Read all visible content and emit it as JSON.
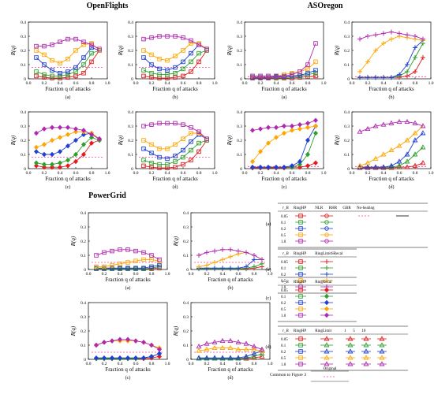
{
  "groups": [
    {
      "title": "OpenFlights"
    },
    {
      "title": "ASOregon"
    },
    {
      "title": "PowerGrid"
    }
  ],
  "axes": {
    "xlabel": "Fraction q of attacks",
    "ylabel": "R(q)",
    "xticks": [
      "0.0",
      "0.2",
      "0.4",
      "0.6",
      "0.8",
      "1.0"
    ]
  },
  "subplot_labels": [
    "(a)",
    "(b)",
    "(c)",
    "(d)"
  ],
  "legend": {
    "rows": [
      {
        "tag": "(a)",
        "headers": [
          "r_B",
          "RingHP",
          "NLR",
          "RHR",
          "GBR",
          "No-healing"
        ],
        "rb": [
          "0.05",
          "0.1",
          "0.2",
          "0.5",
          "1.0"
        ]
      },
      {
        "tag": "(b)",
        "headers": [
          "r_B",
          "RingHP",
          "RingLimitSRecal"
        ],
        "rb": [
          "0.05",
          "0.1",
          "0.2",
          "0.5",
          "1.0"
        ]
      },
      {
        "tag": "(c)",
        "headers": [
          "r_B",
          "RingHP",
          "RingRecal"
        ],
        "rb": [
          "0.05",
          "0.1",
          "0.2",
          "0.5",
          "1.0"
        ]
      },
      {
        "tag": "(d)",
        "headers": [
          "r_B",
          "RingHP",
          "RingLimit",
          "1",
          "5",
          "10"
        ],
        "rb": [
          "0.05",
          "0.1",
          "0.2",
          "0.5",
          "1.0"
        ]
      }
    ],
    "common_label": "Common to Figure 3",
    "original_label": "Original",
    "colors": [
      "#e41a1c",
      "#2ca02c",
      "#1f3fd6",
      "#ffa500",
      "#b028b0"
    ]
  },
  "chart_data": [
    {
      "type": "line",
      "panel": "OpenFlights (a)",
      "ylim": [
        0,
        0.4
      ],
      "yticks": [
        0,
        0.1,
        0.2,
        0.3,
        0.4
      ],
      "original": 0.08,
      "x": [
        0.1,
        0.2,
        0.3,
        0.4,
        0.5,
        0.6,
        0.7,
        0.8,
        0.9
      ],
      "series": [
        {
          "values": [
            0.02,
            0.01,
            0.005,
            0.005,
            0.01,
            0.02,
            0.04,
            0.12,
            0.2
          ]
        },
        {
          "values": [
            0.05,
            0.03,
            0.02,
            0.02,
            0.03,
            0.05,
            0.1,
            0.18,
            0.2
          ]
        },
        {
          "values": [
            0.15,
            0.1,
            0.06,
            0.04,
            0.05,
            0.08,
            0.15,
            0.22,
            0.2
          ]
        },
        {
          "values": [
            0.2,
            0.17,
            0.13,
            0.11,
            0.14,
            0.2,
            0.24,
            0.25,
            0.2
          ]
        },
        {
          "values": [
            0.23,
            0.23,
            0.24,
            0.26,
            0.28,
            0.28,
            0.26,
            0.24,
            0.21
          ]
        }
      ]
    },
    {
      "type": "line",
      "panel": "OpenFlights (b)",
      "ylim": [
        0,
        0.4
      ],
      "yticks": [
        0,
        0.1,
        0.2,
        0.3,
        0.4
      ],
      "original": 0.08,
      "x": [
        0.1,
        0.2,
        0.3,
        0.4,
        0.5,
        0.6,
        0.7,
        0.8,
        0.9
      ],
      "series": [
        {
          "values": [
            0.02,
            0.01,
            0.005,
            0.005,
            0.01,
            0.02,
            0.05,
            0.12,
            0.2
          ]
        },
        {
          "values": [
            0.06,
            0.04,
            0.03,
            0.03,
            0.04,
            0.07,
            0.12,
            0.18,
            0.2
          ]
        },
        {
          "values": [
            0.15,
            0.1,
            0.07,
            0.06,
            0.08,
            0.12,
            0.18,
            0.24,
            0.21
          ]
        },
        {
          "values": [
            0.2,
            0.17,
            0.14,
            0.13,
            0.16,
            0.2,
            0.25,
            0.25,
            0.21
          ]
        },
        {
          "values": [
            0.28,
            0.29,
            0.3,
            0.3,
            0.3,
            0.29,
            0.27,
            0.24,
            0.21
          ]
        }
      ]
    },
    {
      "type": "line",
      "panel": "ASOregon (a)",
      "ylim": [
        0,
        0.4
      ],
      "yticks": [
        0,
        0.1,
        0.2,
        0.3,
        0.4
      ],
      "original": 0.015,
      "x": [
        0.1,
        0.2,
        0.3,
        0.4,
        0.5,
        0.6,
        0.7,
        0.8,
        0.9
      ],
      "series": [
        {
          "values": [
            0.005,
            0.005,
            0.005,
            0.005,
            0.005,
            0.005,
            0.01,
            0.015,
            0.02
          ]
        },
        {
          "values": [
            0.01,
            0.01,
            0.01,
            0.01,
            0.01,
            0.015,
            0.02,
            0.03,
            0.04
          ]
        },
        {
          "values": [
            0.01,
            0.01,
            0.01,
            0.015,
            0.015,
            0.02,
            0.025,
            0.04,
            0.06
          ]
        },
        {
          "values": [
            0.02,
            0.02,
            0.02,
            0.02,
            0.03,
            0.04,
            0.05,
            0.07,
            0.12
          ]
        },
        {
          "values": [
            0.02,
            0.02,
            0.02,
            0.02,
            0.02,
            0.03,
            0.05,
            0.1,
            0.25
          ]
        }
      ]
    },
    {
      "type": "line",
      "panel": "ASOregon (b)",
      "ylim": [
        0,
        0.4
      ],
      "yticks": [
        0,
        0.1,
        0.2,
        0.3,
        0.4
      ],
      "original": 0.015,
      "x": [
        0.1,
        0.2,
        0.3,
        0.4,
        0.5,
        0.6,
        0.7,
        0.8,
        0.9
      ],
      "series": [
        {
          "values": [
            0.01,
            0.01,
            0.01,
            0.01,
            0.01,
            0.01,
            0.02,
            0.05,
            0.15
          ]
        },
        {
          "values": [
            0.01,
            0.01,
            0.01,
            0.01,
            0.01,
            0.02,
            0.05,
            0.15,
            0.25
          ]
        },
        {
          "values": [
            0.01,
            0.01,
            0.01,
            0.01,
            0.01,
            0.03,
            0.1,
            0.22,
            0.27
          ]
        },
        {
          "values": [
            0.05,
            0.12,
            0.2,
            0.25,
            0.28,
            0.3,
            0.29,
            0.28,
            0.27
          ]
        },
        {
          "values": [
            0.28,
            0.3,
            0.31,
            0.32,
            0.33,
            0.32,
            0.31,
            0.3,
            0.28
          ]
        }
      ]
    },
    {
      "type": "line",
      "panel": "OpenFlights (c)",
      "ylim": [
        0,
        0.4
      ],
      "yticks": [
        0,
        0.1,
        0.2,
        0.3,
        0.4
      ],
      "original": 0.08,
      "x": [
        0.1,
        0.2,
        0.3,
        0.4,
        0.5,
        0.6,
        0.7,
        0.8,
        0.9
      ],
      "series": [
        {
          "values": [
            0.02,
            0.01,
            0.01,
            0.01,
            0.02,
            0.05,
            0.1,
            0.18,
            0.2
          ]
        },
        {
          "values": [
            0.04,
            0.03,
            0.03,
            0.04,
            0.06,
            0.1,
            0.17,
            0.22,
            0.2
          ]
        },
        {
          "values": [
            0.12,
            0.1,
            0.1,
            0.12,
            0.16,
            0.2,
            0.24,
            0.25,
            0.21
          ]
        },
        {
          "values": [
            0.15,
            0.17,
            0.2,
            0.22,
            0.24,
            0.26,
            0.26,
            0.25,
            0.21
          ]
        },
        {
          "values": [
            0.25,
            0.28,
            0.29,
            0.29,
            0.29,
            0.28,
            0.27,
            0.24,
            0.21
          ]
        }
      ]
    },
    {
      "type": "line",
      "panel": "OpenFlights (d)",
      "ylim": [
        0,
        0.4
      ],
      "yticks": [
        0,
        0.1,
        0.2,
        0.3,
        0.4
      ],
      "original": 0.08,
      "x": [
        0.1,
        0.2,
        0.3,
        0.4,
        0.5,
        0.6,
        0.7,
        0.8,
        0.9
      ],
      "series": [
        {
          "values": [
            0.02,
            0.01,
            0.005,
            0.005,
            0.01,
            0.03,
            0.06,
            0.12,
            0.2
          ]
        },
        {
          "values": [
            0.06,
            0.04,
            0.03,
            0.03,
            0.05,
            0.08,
            0.13,
            0.18,
            0.2
          ]
        },
        {
          "values": [
            0.14,
            0.11,
            0.08,
            0.07,
            0.09,
            0.13,
            0.19,
            0.24,
            0.21
          ]
        },
        {
          "values": [
            0.2,
            0.17,
            0.14,
            0.14,
            0.17,
            0.21,
            0.25,
            0.25,
            0.21
          ]
        },
        {
          "values": [
            0.3,
            0.31,
            0.32,
            0.32,
            0.32,
            0.31,
            0.29,
            0.26,
            0.21
          ]
        }
      ]
    },
    {
      "type": "line",
      "panel": "ASOregon (c)",
      "ylim": [
        0,
        0.4
      ],
      "yticks": [
        0,
        0.1,
        0.2,
        0.3,
        0.4
      ],
      "original": 0.015,
      "x": [
        0.1,
        0.2,
        0.3,
        0.4,
        0.5,
        0.6,
        0.7,
        0.8,
        0.9
      ],
      "series": [
        {
          "values": [
            0.005,
            0.005,
            0.005,
            0.005,
            0.005,
            0.01,
            0.01,
            0.02,
            0.04
          ]
        },
        {
          "values": [
            0.01,
            0.01,
            0.01,
            0.01,
            0.01,
            0.01,
            0.03,
            0.1,
            0.25
          ]
        },
        {
          "values": [
            0.01,
            0.01,
            0.01,
            0.01,
            0.01,
            0.02,
            0.05,
            0.2,
            0.3
          ]
        },
        {
          "values": [
            0.05,
            0.12,
            0.18,
            0.22,
            0.25,
            0.27,
            0.28,
            0.29,
            0.3
          ]
        },
        {
          "values": [
            0.27,
            0.28,
            0.29,
            0.29,
            0.3,
            0.3,
            0.31,
            0.32,
            0.34
          ]
        }
      ]
    },
    {
      "type": "line",
      "panel": "ASOregon (d)",
      "ylim": [
        0,
        0.4
      ],
      "yticks": [
        0,
        0.1,
        0.2,
        0.3,
        0.4
      ],
      "original": 0.015,
      "x": [
        0.1,
        0.2,
        0.3,
        0.4,
        0.5,
        0.6,
        0.7,
        0.8,
        0.9
      ],
      "series": [
        {
          "values": [
            0.005,
            0.005,
            0.005,
            0.005,
            0.005,
            0.01,
            0.01,
            0.02,
            0.04
          ]
        },
        {
          "values": [
            0.01,
            0.01,
            0.01,
            0.01,
            0.01,
            0.02,
            0.05,
            0.1,
            0.15
          ]
        },
        {
          "values": [
            0.01,
            0.01,
            0.01,
            0.01,
            0.02,
            0.05,
            0.1,
            0.2,
            0.25
          ]
        },
        {
          "values": [
            0.02,
            0.04,
            0.07,
            0.1,
            0.13,
            0.16,
            0.2,
            0.25,
            0.3
          ]
        },
        {
          "values": [
            0.26,
            0.28,
            0.3,
            0.31,
            0.32,
            0.33,
            0.33,
            0.32,
            0.3
          ]
        }
      ]
    },
    {
      "type": "line",
      "panel": "PowerGrid (a)",
      "ylim": [
        0,
        0.4
      ],
      "yticks": [
        0,
        0.1,
        0.2,
        0.3,
        0.4
      ],
      "original": 0.05,
      "x": [
        0.1,
        0.2,
        0.3,
        0.4,
        0.5,
        0.6,
        0.7,
        0.8,
        0.9
      ],
      "series": [
        {
          "values": [
            0.005,
            0.005,
            0.005,
            0.005,
            0.005,
            0.005,
            0.005,
            0.005,
            0.01
          ]
        },
        {
          "values": [
            0.005,
            0.005,
            0.005,
            0.005,
            0.005,
            0.005,
            0.005,
            0.01,
            0.02
          ]
        },
        {
          "values": [
            0.01,
            0.01,
            0.01,
            0.01,
            0.01,
            0.01,
            0.01,
            0.02,
            0.03
          ]
        },
        {
          "values": [
            0.02,
            0.02,
            0.03,
            0.04,
            0.05,
            0.06,
            0.07,
            0.07,
            0.06
          ]
        },
        {
          "values": [
            0.1,
            0.12,
            0.13,
            0.14,
            0.14,
            0.13,
            0.12,
            0.1,
            0.07
          ]
        }
      ]
    },
    {
      "type": "line",
      "panel": "PowerGrid (b)",
      "ylim": [
        0,
        0.4
      ],
      "yticks": [
        0,
        0.1,
        0.2,
        0.3,
        0.4
      ],
      "original": 0.05,
      "x": [
        0.1,
        0.2,
        0.3,
        0.4,
        0.5,
        0.6,
        0.7,
        0.8,
        0.9
      ],
      "series": [
        {
          "values": [
            0.005,
            0.005,
            0.005,
            0.005,
            0.005,
            0.005,
            0.005,
            0.01,
            0.02
          ]
        },
        {
          "values": [
            0.005,
            0.005,
            0.005,
            0.005,
            0.005,
            0.005,
            0.01,
            0.02,
            0.04
          ]
        },
        {
          "values": [
            0.01,
            0.01,
            0.01,
            0.01,
            0.01,
            0.01,
            0.02,
            0.07,
            0.07
          ]
        },
        {
          "values": [
            0.02,
            0.03,
            0.05,
            0.07,
            0.09,
            0.11,
            0.12,
            0.1,
            0.07
          ]
        },
        {
          "values": [
            0.1,
            0.12,
            0.13,
            0.14,
            0.14,
            0.13,
            0.12,
            0.1,
            0.07
          ]
        }
      ]
    },
    {
      "type": "line",
      "panel": "PowerGrid (c)",
      "ylim": [
        0,
        0.4
      ],
      "yticks": [
        0,
        0.1,
        0.2,
        0.3,
        0.4
      ],
      "original": 0.05,
      "x": [
        0.1,
        0.2,
        0.3,
        0.4,
        0.5,
        0.6,
        0.7,
        0.8,
        0.9
      ],
      "series": [
        {
          "values": [
            0.005,
            0.005,
            0.005,
            0.005,
            0.005,
            0.005,
            0.005,
            0.01,
            0.02
          ]
        },
        {
          "values": [
            0.005,
            0.005,
            0.005,
            0.005,
            0.005,
            0.005,
            0.01,
            0.02,
            0.04
          ]
        },
        {
          "values": [
            0.01,
            0.01,
            0.01,
            0.01,
            0.01,
            0.01,
            0.01,
            0.02,
            0.04
          ]
        },
        {
          "values": [
            0.1,
            0.12,
            0.13,
            0.13,
            0.13,
            0.13,
            0.12,
            0.1,
            0.08
          ]
        },
        {
          "values": [
            0.1,
            0.12,
            0.13,
            0.14,
            0.14,
            0.13,
            0.12,
            0.1,
            0.07
          ]
        }
      ]
    },
    {
      "type": "line",
      "panel": "PowerGrid (d)",
      "ylim": [
        0,
        0.4
      ],
      "yticks": [
        0,
        0.1,
        0.2,
        0.3,
        0.4
      ],
      "original": 0.05,
      "x": [
        0.1,
        0.2,
        0.3,
        0.4,
        0.5,
        0.6,
        0.7,
        0.8,
        0.9
      ],
      "series": [
        {
          "values": [
            0.005,
            0.005,
            0.005,
            0.005,
            0.005,
            0.005,
            0.005,
            0.01,
            0.02
          ]
        },
        {
          "values": [
            0.005,
            0.005,
            0.005,
            0.005,
            0.005,
            0.005,
            0.01,
            0.02,
            0.04
          ]
        },
        {
          "values": [
            0.01,
            0.01,
            0.01,
            0.01,
            0.01,
            0.01,
            0.02,
            0.04,
            0.06
          ]
        },
        {
          "values": [
            0.06,
            0.07,
            0.08,
            0.08,
            0.08,
            0.07,
            0.07,
            0.07,
            0.06
          ]
        },
        {
          "values": [
            0.09,
            0.11,
            0.12,
            0.13,
            0.13,
            0.12,
            0.11,
            0.09,
            0.07
          ]
        }
      ]
    }
  ]
}
